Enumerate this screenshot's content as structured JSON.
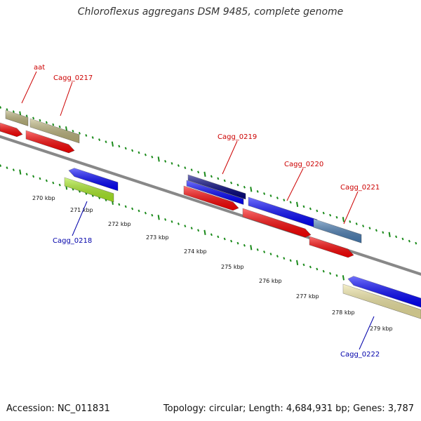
{
  "title": "Chloroflexus aggregans DSM 9485, complete genome",
  "footer": {
    "accession": "Accession: NC_011831",
    "summary": "Topology: circular; Length: 4,684,931 bp; Genes: 3,787"
  },
  "colors": {
    "backbone": "#888888",
    "tick": "#1a8a1a",
    "cds_forward": "#ff0000",
    "cds_reverse": "#0000ff",
    "gene_label_forward": "#cc0000",
    "gene_label_reverse": "#0000aa"
  },
  "scale_labels": [
    "270 kbp",
    "271 kbp",
    "272 kbp",
    "273 kbp",
    "274 kbp",
    "275 kbp",
    "276 kbp",
    "277 kbp",
    "278 kbp",
    "279 kbp"
  ],
  "gene_labels": [
    {
      "text": "aat",
      "color": "#cc0000"
    },
    {
      "text": "Cagg_0217",
      "color": "#cc0000"
    },
    {
      "text": "Cagg_0219",
      "color": "#cc0000"
    },
    {
      "text": "Cagg_0220",
      "color": "#cc0000"
    },
    {
      "text": "Cagg_0221",
      "color": "#cc0000"
    },
    {
      "text": "Cagg_0218",
      "color": "#0000aa"
    },
    {
      "text": "Cagg_0222",
      "color": "#0000aa"
    }
  ]
}
